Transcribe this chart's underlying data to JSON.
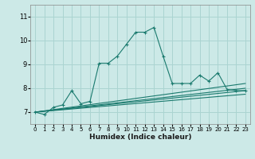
{
  "xlabel": "Humidex (Indice chaleur)",
  "xlim": [
    -0.5,
    23.5
  ],
  "ylim": [
    6.5,
    11.5
  ],
  "yticks": [
    7,
    8,
    9,
    10,
    11
  ],
  "xticks": [
    0,
    1,
    2,
    3,
    4,
    5,
    6,
    7,
    8,
    9,
    10,
    11,
    12,
    13,
    14,
    15,
    16,
    17,
    18,
    19,
    20,
    21,
    22,
    23
  ],
  "background_color": "#cce9e7",
  "grid_color": "#aad4d1",
  "line_color": "#1a7a6e",
  "line1_x": [
    0,
    1,
    2,
    3,
    4,
    5,
    6,
    7,
    8,
    9,
    10,
    11,
    12,
    13,
    14,
    15,
    16,
    17,
    18,
    19,
    20,
    21,
    22,
    23
  ],
  "line1_y": [
    7.0,
    6.9,
    7.2,
    7.3,
    7.9,
    7.35,
    7.45,
    9.05,
    9.05,
    9.35,
    9.85,
    10.35,
    10.35,
    10.55,
    9.35,
    8.2,
    8.2,
    8.2,
    8.55,
    8.3,
    8.65,
    7.95,
    7.9,
    7.9
  ],
  "ref_lines": [
    {
      "x": [
        0,
        23
      ],
      "y": [
        7.0,
        8.2
      ]
    },
    {
      "x": [
        0,
        23
      ],
      "y": [
        7.0,
        8.0
      ]
    },
    {
      "x": [
        0,
        23
      ],
      "y": [
        7.0,
        7.9
      ]
    },
    {
      "x": [
        0,
        23
      ],
      "y": [
        7.0,
        7.75
      ]
    }
  ]
}
